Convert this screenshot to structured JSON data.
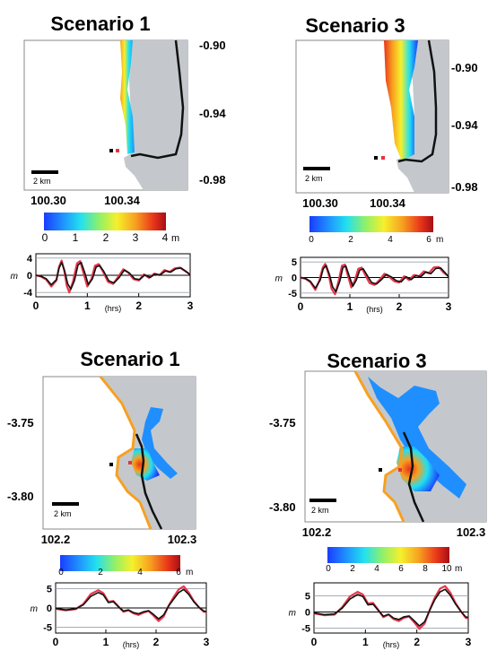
{
  "colors": {
    "land": "#c4c8cd",
    "coast": "#111111",
    "observed": "#e8364a",
    "simulated": "#111111",
    "marker_black": "#000000",
    "marker_red": "#e8323c",
    "colormap": [
      "#1a3cff",
      "#1f8fff",
      "#22e0f0",
      "#8ff06a",
      "#f6f02c",
      "#f7a020",
      "#e8331a",
      "#a50f15"
    ]
  },
  "panels": [
    {
      "id": "tl",
      "title": "Scenario 1",
      "y_ticks": [
        "-0.90",
        "-0.94",
        "-0.98"
      ],
      "x_ticks": [
        "100.30",
        "100.34"
      ],
      "scale_bar": "2 km",
      "colorbar": {
        "ticks": [
          "0",
          "1",
          "2",
          "3",
          "4"
        ],
        "unit": "m",
        "max": 4
      },
      "timeseries": {
        "y_ticks": [
          "4",
          "0",
          "-4"
        ],
        "y_unit": "m",
        "x_ticks": [
          "0",
          "1",
          "2",
          "3"
        ],
        "x_unit": "(hrs)",
        "ylim": [
          -5,
          5
        ],
        "observed": [
          [
            0,
            0
          ],
          [
            0.1,
            -0.3
          ],
          [
            0.2,
            -1.0
          ],
          [
            0.3,
            -2.6
          ],
          [
            0.4,
            -1.2
          ],
          [
            0.45,
            2.0
          ],
          [
            0.5,
            3.4
          ],
          [
            0.55,
            1.2
          ],
          [
            0.6,
            -2.4
          ],
          [
            0.65,
            -4.0
          ],
          [
            0.72,
            -1.5
          ],
          [
            0.8,
            2.8
          ],
          [
            0.86,
            3.3
          ],
          [
            0.92,
            0.8
          ],
          [
            1.0,
            -2.6
          ],
          [
            1.08,
            -0.9
          ],
          [
            1.15,
            2.2
          ],
          [
            1.22,
            2.6
          ],
          [
            1.3,
            1.0
          ],
          [
            1.4,
            -1.5
          ],
          [
            1.5,
            -2.0
          ],
          [
            1.6,
            -0.4
          ],
          [
            1.7,
            1.4
          ],
          [
            1.8,
            0.6
          ],
          [
            1.9,
            -0.9
          ],
          [
            2.0,
            -1.2
          ],
          [
            2.1,
            0.2
          ],
          [
            2.2,
            -0.6
          ],
          [
            2.3,
            0.4
          ],
          [
            2.4,
            0.0
          ],
          [
            2.5,
            1.2
          ],
          [
            2.6,
            0.8
          ],
          [
            2.7,
            1.6
          ],
          [
            2.8,
            1.8
          ],
          [
            2.9,
            1.0
          ],
          [
            3.0,
            0.2
          ]
        ],
        "simulated": [
          [
            0,
            0
          ],
          [
            0.1,
            -0.2
          ],
          [
            0.2,
            -0.8
          ],
          [
            0.3,
            -2.2
          ],
          [
            0.4,
            -1.0
          ],
          [
            0.45,
            1.6
          ],
          [
            0.5,
            3.0
          ],
          [
            0.56,
            1.0
          ],
          [
            0.62,
            -2.0
          ],
          [
            0.68,
            -3.2
          ],
          [
            0.75,
            -1.2
          ],
          [
            0.82,
            2.4
          ],
          [
            0.88,
            3.0
          ],
          [
            0.95,
            0.6
          ],
          [
            1.02,
            -2.2
          ],
          [
            1.1,
            -0.8
          ],
          [
            1.17,
            1.9
          ],
          [
            1.24,
            2.3
          ],
          [
            1.32,
            0.9
          ],
          [
            1.42,
            -1.3
          ],
          [
            1.52,
            -1.8
          ],
          [
            1.62,
            -0.5
          ],
          [
            1.72,
            1.2
          ],
          [
            1.82,
            0.5
          ],
          [
            1.92,
            -0.8
          ],
          [
            2.02,
            -1.0
          ],
          [
            2.12,
            0.1
          ],
          [
            2.22,
            -0.5
          ],
          [
            2.32,
            0.3
          ],
          [
            2.42,
            0.1
          ],
          [
            2.52,
            1.0
          ],
          [
            2.62,
            0.7
          ],
          [
            2.72,
            1.5
          ],
          [
            2.82,
            1.7
          ],
          [
            2.92,
            0.9
          ],
          [
            3.0,
            0.1
          ]
        ]
      }
    },
    {
      "id": "tr",
      "title": "Scenario 3",
      "y_ticks": [
        "-0.90",
        "-0.94",
        "-0.98"
      ],
      "x_ticks": [
        "100.30",
        "100.34"
      ],
      "scale_bar": "2 km",
      "colorbar": {
        "ticks": [
          "0",
          "2",
          "4",
          "6"
        ],
        "unit": "m",
        "max": 6
      },
      "timeseries": {
        "y_ticks": [
          "5",
          "0",
          "-5"
        ],
        "y_unit": "m",
        "x_ticks": [
          "0",
          "1",
          "2",
          "3"
        ],
        "x_unit": "(hrs)",
        "ylim": [
          -6.5,
          6.5
        ],
        "observed": [
          [
            0,
            0
          ],
          [
            0.1,
            -0.4
          ],
          [
            0.2,
            -1.5
          ],
          [
            0.3,
            -4.0
          ],
          [
            0.38,
            -1.0
          ],
          [
            0.45,
            3.2
          ],
          [
            0.5,
            4.4
          ],
          [
            0.57,
            1.0
          ],
          [
            0.63,
            -3.6
          ],
          [
            0.7,
            -5.4
          ],
          [
            0.77,
            -1.2
          ],
          [
            0.84,
            3.8
          ],
          [
            0.9,
            4.2
          ],
          [
            0.96,
            0.6
          ],
          [
            1.03,
            -3.2
          ],
          [
            1.1,
            -1.0
          ],
          [
            1.17,
            2.8
          ],
          [
            1.24,
            3.2
          ],
          [
            1.3,
            1.2
          ],
          [
            1.4,
            -1.8
          ],
          [
            1.5,
            -2.4
          ],
          [
            1.6,
            -0.8
          ],
          [
            1.7,
            1.2
          ],
          [
            1.8,
            0.2
          ],
          [
            1.9,
            -1.2
          ],
          [
            2.0,
            -1.6
          ],
          [
            2.1,
            0.4
          ],
          [
            2.2,
            -0.8
          ],
          [
            2.3,
            0.8
          ],
          [
            2.4,
            0.4
          ],
          [
            2.5,
            2.0
          ],
          [
            2.6,
            1.4
          ],
          [
            2.7,
            3.2
          ],
          [
            2.8,
            3.4
          ],
          [
            2.9,
            1.6
          ],
          [
            3.0,
            0.4
          ]
        ],
        "simulated": [
          [
            0,
            0
          ],
          [
            0.1,
            -0.3
          ],
          [
            0.2,
            -1.2
          ],
          [
            0.3,
            -3.4
          ],
          [
            0.4,
            -0.8
          ],
          [
            0.46,
            2.8
          ],
          [
            0.52,
            3.9
          ],
          [
            0.59,
            0.8
          ],
          [
            0.65,
            -3.0
          ],
          [
            0.72,
            -4.6
          ],
          [
            0.8,
            -1.0
          ],
          [
            0.86,
            3.3
          ],
          [
            0.92,
            3.7
          ],
          [
            0.99,
            0.4
          ],
          [
            1.06,
            -2.8
          ],
          [
            1.13,
            -0.9
          ],
          [
            1.2,
            2.4
          ],
          [
            1.27,
            2.8
          ],
          [
            1.34,
            1.0
          ],
          [
            1.44,
            -1.6
          ],
          [
            1.54,
            -2.1
          ],
          [
            1.64,
            -0.7
          ],
          [
            1.74,
            1.0
          ],
          [
            1.84,
            0.2
          ],
          [
            1.94,
            -1.0
          ],
          [
            2.04,
            -1.4
          ],
          [
            2.14,
            0.3
          ],
          [
            2.24,
            -0.7
          ],
          [
            2.34,
            0.6
          ],
          [
            2.44,
            0.3
          ],
          [
            2.54,
            1.8
          ],
          [
            2.64,
            1.2
          ],
          [
            2.74,
            2.9
          ],
          [
            2.84,
            3.1
          ],
          [
            2.94,
            1.4
          ],
          [
            3.0,
            0.3
          ]
        ]
      }
    },
    {
      "id": "bl",
      "title": "Scenario 1",
      "y_ticks": [
        "-3.75",
        "-3.80"
      ],
      "x_ticks": [
        "102.2",
        "102.3"
      ],
      "scale_bar": "2 km",
      "colorbar": {
        "ticks": [
          "0",
          "2",
          "4",
          "6"
        ],
        "unit": "m",
        "max": 6
      },
      "timeseries": {
        "y_ticks": [
          "5",
          "0",
          "-5"
        ],
        "y_unit": "m",
        "x_ticks": [
          "0",
          "1",
          "2",
          "3"
        ],
        "x_unit": "(hrs)",
        "ylim": [
          -6.5,
          6.5
        ],
        "observed": [
          [
            0,
            -0.2
          ],
          [
            0.2,
            -0.6
          ],
          [
            0.4,
            -0.3
          ],
          [
            0.55,
            1.0
          ],
          [
            0.7,
            3.6
          ],
          [
            0.85,
            4.6
          ],
          [
            0.95,
            3.8
          ],
          [
            1.05,
            1.6
          ],
          [
            1.15,
            1.8
          ],
          [
            1.25,
            0.4
          ],
          [
            1.35,
            -1.0
          ],
          [
            1.45,
            -0.6
          ],
          [
            1.55,
            -1.4
          ],
          [
            1.65,
            -1.8
          ],
          [
            1.75,
            -1.2
          ],
          [
            1.85,
            -0.8
          ],
          [
            1.95,
            -2.0
          ],
          [
            2.05,
            -3.4
          ],
          [
            2.15,
            -2.2
          ],
          [
            2.25,
            0.6
          ],
          [
            2.35,
            2.8
          ],
          [
            2.45,
            4.8
          ],
          [
            2.55,
            5.6
          ],
          [
            2.65,
            4.0
          ],
          [
            2.75,
            1.8
          ],
          [
            2.85,
            0.2
          ],
          [
            2.95,
            -1.0
          ],
          [
            3.0,
            -1.0
          ]
        ],
        "simulated": [
          [
            0,
            -0.1
          ],
          [
            0.2,
            -0.5
          ],
          [
            0.4,
            -0.2
          ],
          [
            0.55,
            0.8
          ],
          [
            0.7,
            3.0
          ],
          [
            0.85,
            4.0
          ],
          [
            0.95,
            3.4
          ],
          [
            1.05,
            1.4
          ],
          [
            1.15,
            1.6
          ],
          [
            1.25,
            0.3
          ],
          [
            1.35,
            -0.8
          ],
          [
            1.45,
            -0.5
          ],
          [
            1.55,
            -1.2
          ],
          [
            1.65,
            -1.5
          ],
          [
            1.75,
            -1.0
          ],
          [
            1.85,
            -0.7
          ],
          [
            1.95,
            -1.7
          ],
          [
            2.05,
            -2.8
          ],
          [
            2.15,
            -1.8
          ],
          [
            2.25,
            0.5
          ],
          [
            2.35,
            2.3
          ],
          [
            2.45,
            4.0
          ],
          [
            2.55,
            4.8
          ],
          [
            2.65,
            3.5
          ],
          [
            2.75,
            1.6
          ],
          [
            2.85,
            0.2
          ],
          [
            2.95,
            -0.8
          ],
          [
            3.0,
            -0.9
          ]
        ]
      }
    },
    {
      "id": "br",
      "title": "Scenario 3",
      "y_ticks": [
        "-3.75",
        "-3.80"
      ],
      "x_ticks": [
        "102.2",
        "102.3"
      ],
      "scale_bar": "2 km",
      "colorbar": {
        "ticks": [
          "0",
          "2",
          "4",
          "6",
          "8",
          "10"
        ],
        "unit": "m",
        "max": 10
      },
      "timeseries": {
        "y_ticks": [
          "5",
          "0",
          "-5"
        ],
        "y_unit": "m",
        "x_ticks": [
          "0",
          "1",
          "2",
          "3"
        ],
        "x_unit": "(hrs)",
        "ylim": [
          -6.5,
          9
        ],
        "observed": [
          [
            0,
            -0.4
          ],
          [
            0.2,
            -1.0
          ],
          [
            0.4,
            -0.8
          ],
          [
            0.55,
            1.5
          ],
          [
            0.7,
            4.8
          ],
          [
            0.85,
            6.2
          ],
          [
            0.95,
            5.4
          ],
          [
            1.05,
            2.6
          ],
          [
            1.15,
            2.8
          ],
          [
            1.25,
            0.6
          ],
          [
            1.35,
            -1.6
          ],
          [
            1.45,
            -0.8
          ],
          [
            1.55,
            -2.2
          ],
          [
            1.65,
            -2.8
          ],
          [
            1.75,
            -1.8
          ],
          [
            1.85,
            -1.4
          ],
          [
            1.95,
            -3.2
          ],
          [
            2.05,
            -5.2
          ],
          [
            2.15,
            -3.6
          ],
          [
            2.25,
            0.6
          ],
          [
            2.35,
            4.4
          ],
          [
            2.45,
            7.2
          ],
          [
            2.55,
            8.0
          ],
          [
            2.65,
            6.0
          ],
          [
            2.75,
            2.8
          ],
          [
            2.85,
            0.4
          ],
          [
            2.95,
            -1.8
          ],
          [
            3.0,
            -2.0
          ]
        ],
        "simulated": [
          [
            0,
            -0.3
          ],
          [
            0.2,
            -0.8
          ],
          [
            0.4,
            -0.6
          ],
          [
            0.55,
            1.2
          ],
          [
            0.7,
            4.0
          ],
          [
            0.85,
            5.4
          ],
          [
            0.95,
            4.8
          ],
          [
            1.05,
            2.2
          ],
          [
            1.15,
            2.4
          ],
          [
            1.25,
            0.5
          ],
          [
            1.35,
            -1.3
          ],
          [
            1.45,
            -0.7
          ],
          [
            1.55,
            -1.9
          ],
          [
            1.65,
            -2.3
          ],
          [
            1.75,
            -1.5
          ],
          [
            1.85,
            -1.2
          ],
          [
            1.95,
            -2.7
          ],
          [
            2.05,
            -4.3
          ],
          [
            2.15,
            -3.0
          ],
          [
            2.25,
            0.5
          ],
          [
            2.35,
            3.8
          ],
          [
            2.45,
            6.2
          ],
          [
            2.55,
            7.0
          ],
          [
            2.65,
            5.2
          ],
          [
            2.75,
            2.5
          ],
          [
            2.85,
            0.3
          ],
          [
            2.95,
            -1.5
          ],
          [
            3.0,
            -1.7
          ]
        ]
      }
    }
  ]
}
